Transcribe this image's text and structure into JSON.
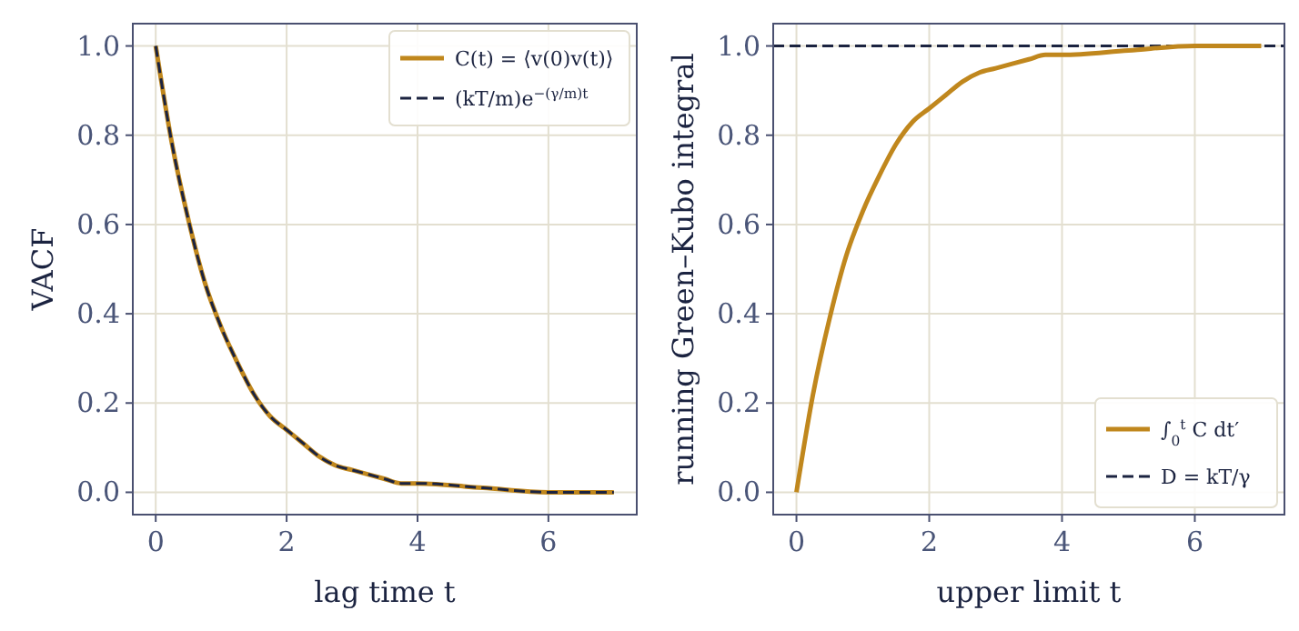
{
  "chart_data": [
    {
      "type": "line",
      "xlabel": "lag time t",
      "ylabel": "VACF",
      "x": [
        0,
        0.25,
        0.5,
        0.75,
        1,
        1.25,
        1.5,
        1.75,
        2,
        2.25,
        2.5,
        2.75,
        3,
        3.25,
        3.5,
        3.75,
        4,
        5,
        6,
        7
      ],
      "xlim": [
        -0.35,
        7.35
      ],
      "ylim": [
        -0.05,
        1.05
      ],
      "xticks": [
        0,
        2,
        4,
        6
      ],
      "yticks": [
        {
          "value": 0,
          "label": "0.0"
        },
        {
          "value": 0.2,
          "label": "0.2"
        },
        {
          "value": 0.4,
          "label": "0.4"
        },
        {
          "value": 0.6,
          "label": "0.6"
        },
        {
          "value": 0.8,
          "label": "0.8"
        },
        {
          "value": 1,
          "label": "1.0"
        }
      ],
      "grid": true,
      "legend": "top right",
      "series": [
        {
          "name": "C(t) = ⟨v(0)v(t)⟩",
          "color": "#c0871d",
          "line_style": "solid",
          "values": [
            1,
            0.78,
            0.61,
            0.47,
            0.37,
            0.29,
            0.22,
            0.17,
            0.14,
            0.11,
            0.08,
            0.06,
            0.05,
            0.04,
            0.03,
            0.02,
            0.02,
            0.01,
            0,
            0
          ]
        },
        {
          "name": "(kT/m)e$^{−(γ/m)t}$",
          "color": "#1b2340",
          "line_style": "dashed",
          "values": [
            1,
            0.78,
            0.61,
            0.47,
            0.37,
            0.29,
            0.22,
            0.17,
            0.14,
            0.11,
            0.08,
            0.06,
            0.05,
            0.04,
            0.03,
            0.02,
            0.02,
            0.01,
            0,
            0
          ]
        }
      ]
    },
    {
      "type": "line",
      "xlabel": "upper limit t",
      "ylabel": "running Green–Kubo integral",
      "x": [
        0,
        0.25,
        0.5,
        0.75,
        1,
        1.25,
        1.5,
        1.75,
        2,
        2.25,
        2.5,
        2.75,
        3,
        3.25,
        3.5,
        3.75,
        4,
        5,
        6,
        7
      ],
      "xlim": [
        -0.35,
        7.35
      ],
      "ylim": [
        -0.05,
        1.05
      ],
      "xticks": [
        0,
        2,
        4,
        6
      ],
      "yticks": [
        {
          "value": 0,
          "label": "0.0"
        },
        {
          "value": 0.2,
          "label": "0.2"
        },
        {
          "value": 0.4,
          "label": "0.4"
        },
        {
          "value": 0.6,
          "label": "0.6"
        },
        {
          "value": 0.8,
          "label": "0.8"
        },
        {
          "value": 1,
          "label": "1.0"
        }
      ],
      "grid": true,
      "legend": "bottom right",
      "series": [
        {
          "name": "∫$_{0}$$^{t}$ C dt′",
          "color": "#c0871d",
          "line_style": "solid",
          "values": [
            0,
            0.22,
            0.39,
            0.53,
            0.63,
            0.71,
            0.78,
            0.83,
            0.86,
            0.89,
            0.92,
            0.94,
            0.95,
            0.96,
            0.97,
            0.98,
            0.98,
            0.99,
            1,
            1
          ]
        }
      ],
      "ref_lines": [
        {
          "axis": "y",
          "value": 1,
          "label": "D = kT/γ",
          "color": "#1b2340",
          "line_style": "dashed"
        }
      ]
    }
  ]
}
